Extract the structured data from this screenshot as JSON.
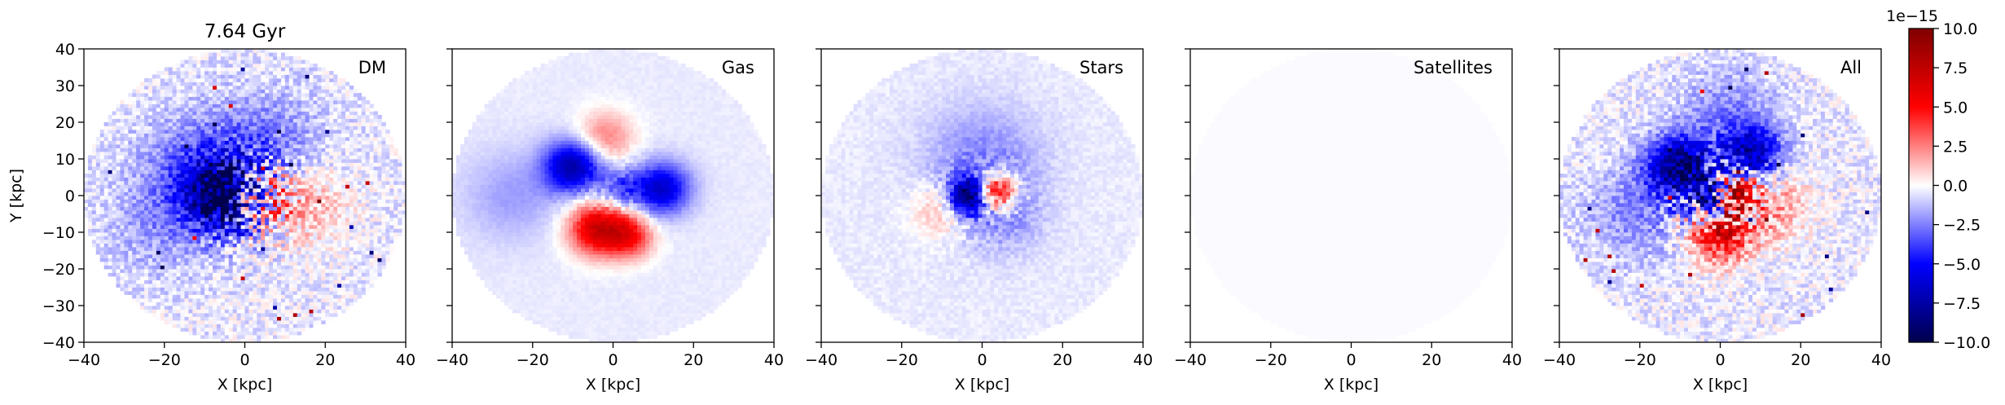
{
  "chart_data": [
    {
      "type": "heatmap",
      "component": "DM",
      "title": "7.64 Gyr",
      "panel_label": "DM",
      "xlabel": "X [kpc]",
      "ylabel": "Y [kpc]",
      "xlim": [
        -40,
        40
      ],
      "ylim": [
        -40,
        40
      ],
      "xticks": [
        -40,
        -20,
        0,
        20,
        40
      ],
      "yticks": [
        -40,
        -30,
        -20,
        -10,
        0,
        10,
        20,
        30,
        40
      ],
      "tick_labels_x": [
        "−40",
        "−20",
        "0",
        "20",
        "40"
      ],
      "tick_labels_y": [
        "−40",
        "−30",
        "−20",
        "−10",
        "0",
        "10",
        "20",
        "30",
        "40"
      ],
      "disk_radius": 40,
      "features": [
        {
          "x": -5,
          "y": 0,
          "r": 9,
          "value": -9
        },
        {
          "x": 4,
          "y": 0,
          "r": 7,
          "value": 4
        },
        {
          "x": 15,
          "y": -3,
          "r": 10,
          "value": 2
        },
        {
          "x": -12,
          "y": 8,
          "r": 14,
          "value": -2.5
        },
        {
          "x": 5,
          "y": 15,
          "r": 14,
          "value": -2
        },
        {
          "x": -20,
          "y": -8,
          "r": 14,
          "value": -1.5
        }
      ]
    },
    {
      "type": "heatmap",
      "component": "Gas",
      "panel_label": "Gas",
      "xlabel": "X [kpc]",
      "xlim": [
        -40,
        40
      ],
      "ylim": [
        -40,
        40
      ],
      "xticks": [
        -40,
        -20,
        0,
        20,
        40
      ],
      "tick_labels_x": [
        "−40",
        "−20",
        "0",
        "20",
        "40"
      ],
      "disk_radius": 40,
      "features": [
        {
          "x": -10,
          "y": 8,
          "r": 7,
          "value": -7
        },
        {
          "x": 12,
          "y": 2,
          "r": 7,
          "value": -6
        },
        {
          "x": -4,
          "y": -9,
          "r": 7,
          "value": 7
        },
        {
          "x": 4,
          "y": -11,
          "r": 6,
          "value": 5
        },
        {
          "x": -2,
          "y": 16,
          "r": 7,
          "value": 3
        },
        {
          "x": 2,
          "y": 2,
          "r": 5,
          "value": -3
        },
        {
          "x": -25,
          "y": 0,
          "r": 12,
          "value": -1.5
        }
      ]
    },
    {
      "type": "heatmap",
      "component": "Stars",
      "panel_label": "Stars",
      "xlabel": "X [kpc]",
      "xlim": [
        -40,
        40
      ],
      "ylim": [
        -40,
        40
      ],
      "xticks": [
        -40,
        -20,
        0,
        20,
        40
      ],
      "tick_labels_x": [
        "−40",
        "−20",
        "0",
        "20",
        "40"
      ],
      "disk_radius": 40,
      "features": [
        {
          "x": -3,
          "y": 0,
          "r": 5,
          "value": -9
        },
        {
          "x": 3,
          "y": 1,
          "r": 5,
          "value": 8
        },
        {
          "x": 0,
          "y": 10,
          "r": 14,
          "value": -2
        },
        {
          "x": 5,
          "y": -6,
          "r": 10,
          "value": -1.5
        },
        {
          "x": -10,
          "y": -4,
          "r": 7,
          "value": 2
        }
      ]
    },
    {
      "type": "heatmap",
      "component": "Satellites",
      "panel_label": "Satellites",
      "xlabel": "X [kpc]",
      "xlim": [
        -40,
        40
      ],
      "ylim": [
        -40,
        40
      ],
      "xticks": [
        -40,
        -20,
        0,
        20,
        40
      ],
      "tick_labels_x": [
        "−40",
        "−20",
        "0",
        "20",
        "40"
      ],
      "disk_radius": 40,
      "features": []
    },
    {
      "type": "heatmap",
      "component": "All",
      "panel_label": "All",
      "xlabel": "X [kpc]",
      "xlim": [
        -40,
        40
      ],
      "ylim": [
        -40,
        40
      ],
      "xticks": [
        -40,
        -20,
        0,
        20,
        40
      ],
      "tick_labels_x": [
        "−40",
        "−20",
        "0",
        "20",
        "40"
      ],
      "disk_radius": 40,
      "features": [
        {
          "x": -10,
          "y": 8,
          "r": 8,
          "value": -8
        },
        {
          "x": 8,
          "y": 12,
          "r": 7,
          "value": -6
        },
        {
          "x": -2,
          "y": 0,
          "r": 5,
          "value": -9
        },
        {
          "x": 3,
          "y": 1,
          "r": 5,
          "value": 8
        },
        {
          "x": 0,
          "y": -10,
          "r": 8,
          "value": 6
        },
        {
          "x": 14,
          "y": -3,
          "r": 9,
          "value": 2
        },
        {
          "x": -20,
          "y": -5,
          "r": 13,
          "value": -2
        },
        {
          "x": 2,
          "y": 22,
          "r": 12,
          "value": -2
        }
      ]
    }
  ],
  "colorbar": {
    "colormap": "seismic",
    "vmin": -10.0,
    "vmax": 10.0,
    "offset_label": "1e−15",
    "ticks": [
      10.0,
      7.5,
      5.0,
      2.5,
      0.0,
      -2.5,
      -5.0,
      -7.5,
      -10.0
    ],
    "tick_labels": [
      "10.0",
      "7.5",
      "5.0",
      "2.5",
      "0.0",
      "−2.5",
      "−5.0",
      "−7.5",
      "−10.0"
    ],
    "colors": {
      "low": "#00004c",
      "mid_low": "#0000ff",
      "center": "#ffffff",
      "mid_high": "#ff0000",
      "high": "#800000"
    }
  }
}
